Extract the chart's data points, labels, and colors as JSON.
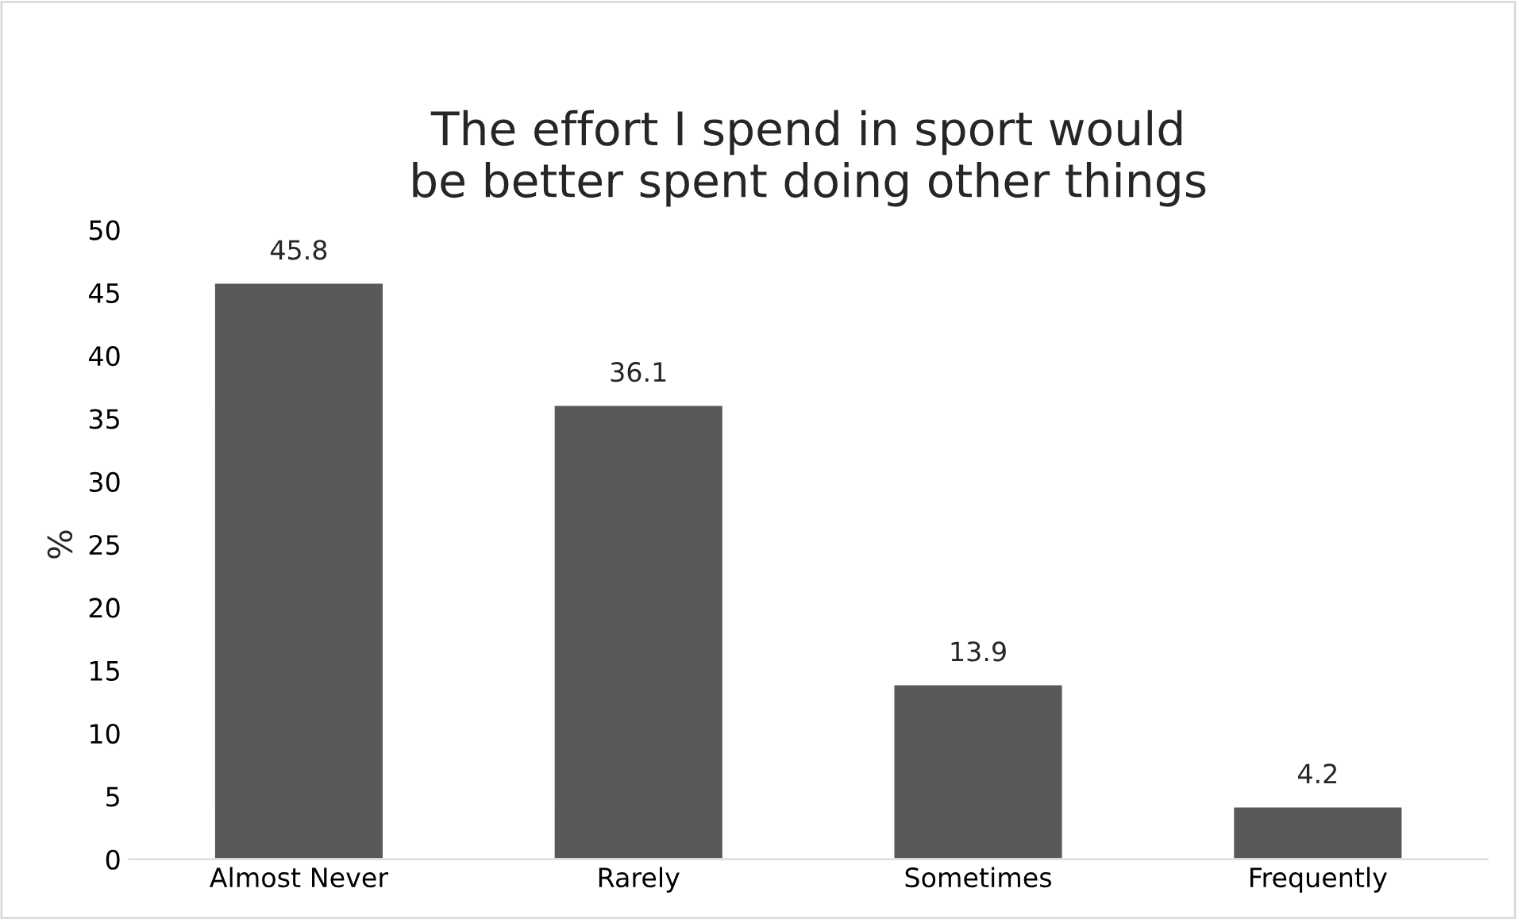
{
  "chart_data": {
    "type": "bar",
    "title": "The effort I spend in sport would be better spent doing other things",
    "ylabel": "%",
    "categories": [
      "Almost Never",
      "Rarely",
      "Sometimes",
      "Frequently"
    ],
    "values": [
      45.8,
      36.1,
      13.9,
      4.2
    ],
    "color": "#595959",
    "ylim": [
      0,
      50
    ],
    "yticks": [
      0,
      5,
      10,
      15,
      20,
      25,
      30,
      35,
      40,
      45,
      50
    ],
    "grid": false,
    "data_labels": true
  }
}
